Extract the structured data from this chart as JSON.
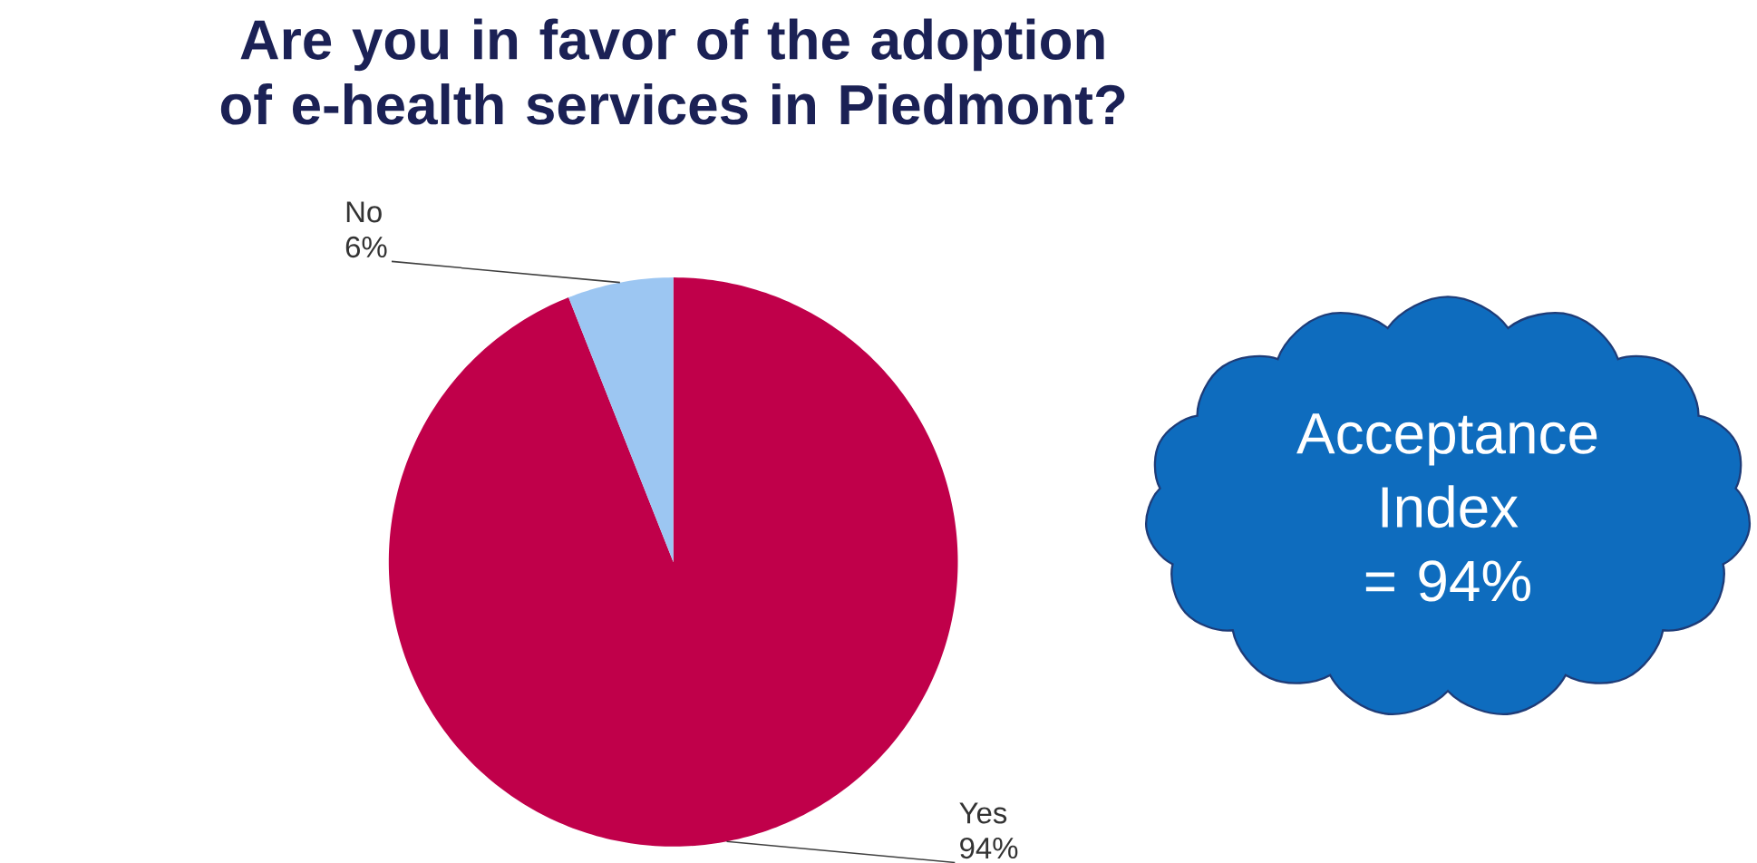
{
  "chart_data": {
    "type": "pie",
    "title": "Are you in favor of the adoption of e-health services in Piedmont?",
    "categories": [
      "Yes",
      "No"
    ],
    "values": [
      94,
      6
    ],
    "value_labels": [
      "94%",
      "6%"
    ],
    "colors": [
      "#c0004a",
      "#9cc6f2"
    ],
    "annotations": [
      "Acceptance Index = 94%"
    ]
  }
}
